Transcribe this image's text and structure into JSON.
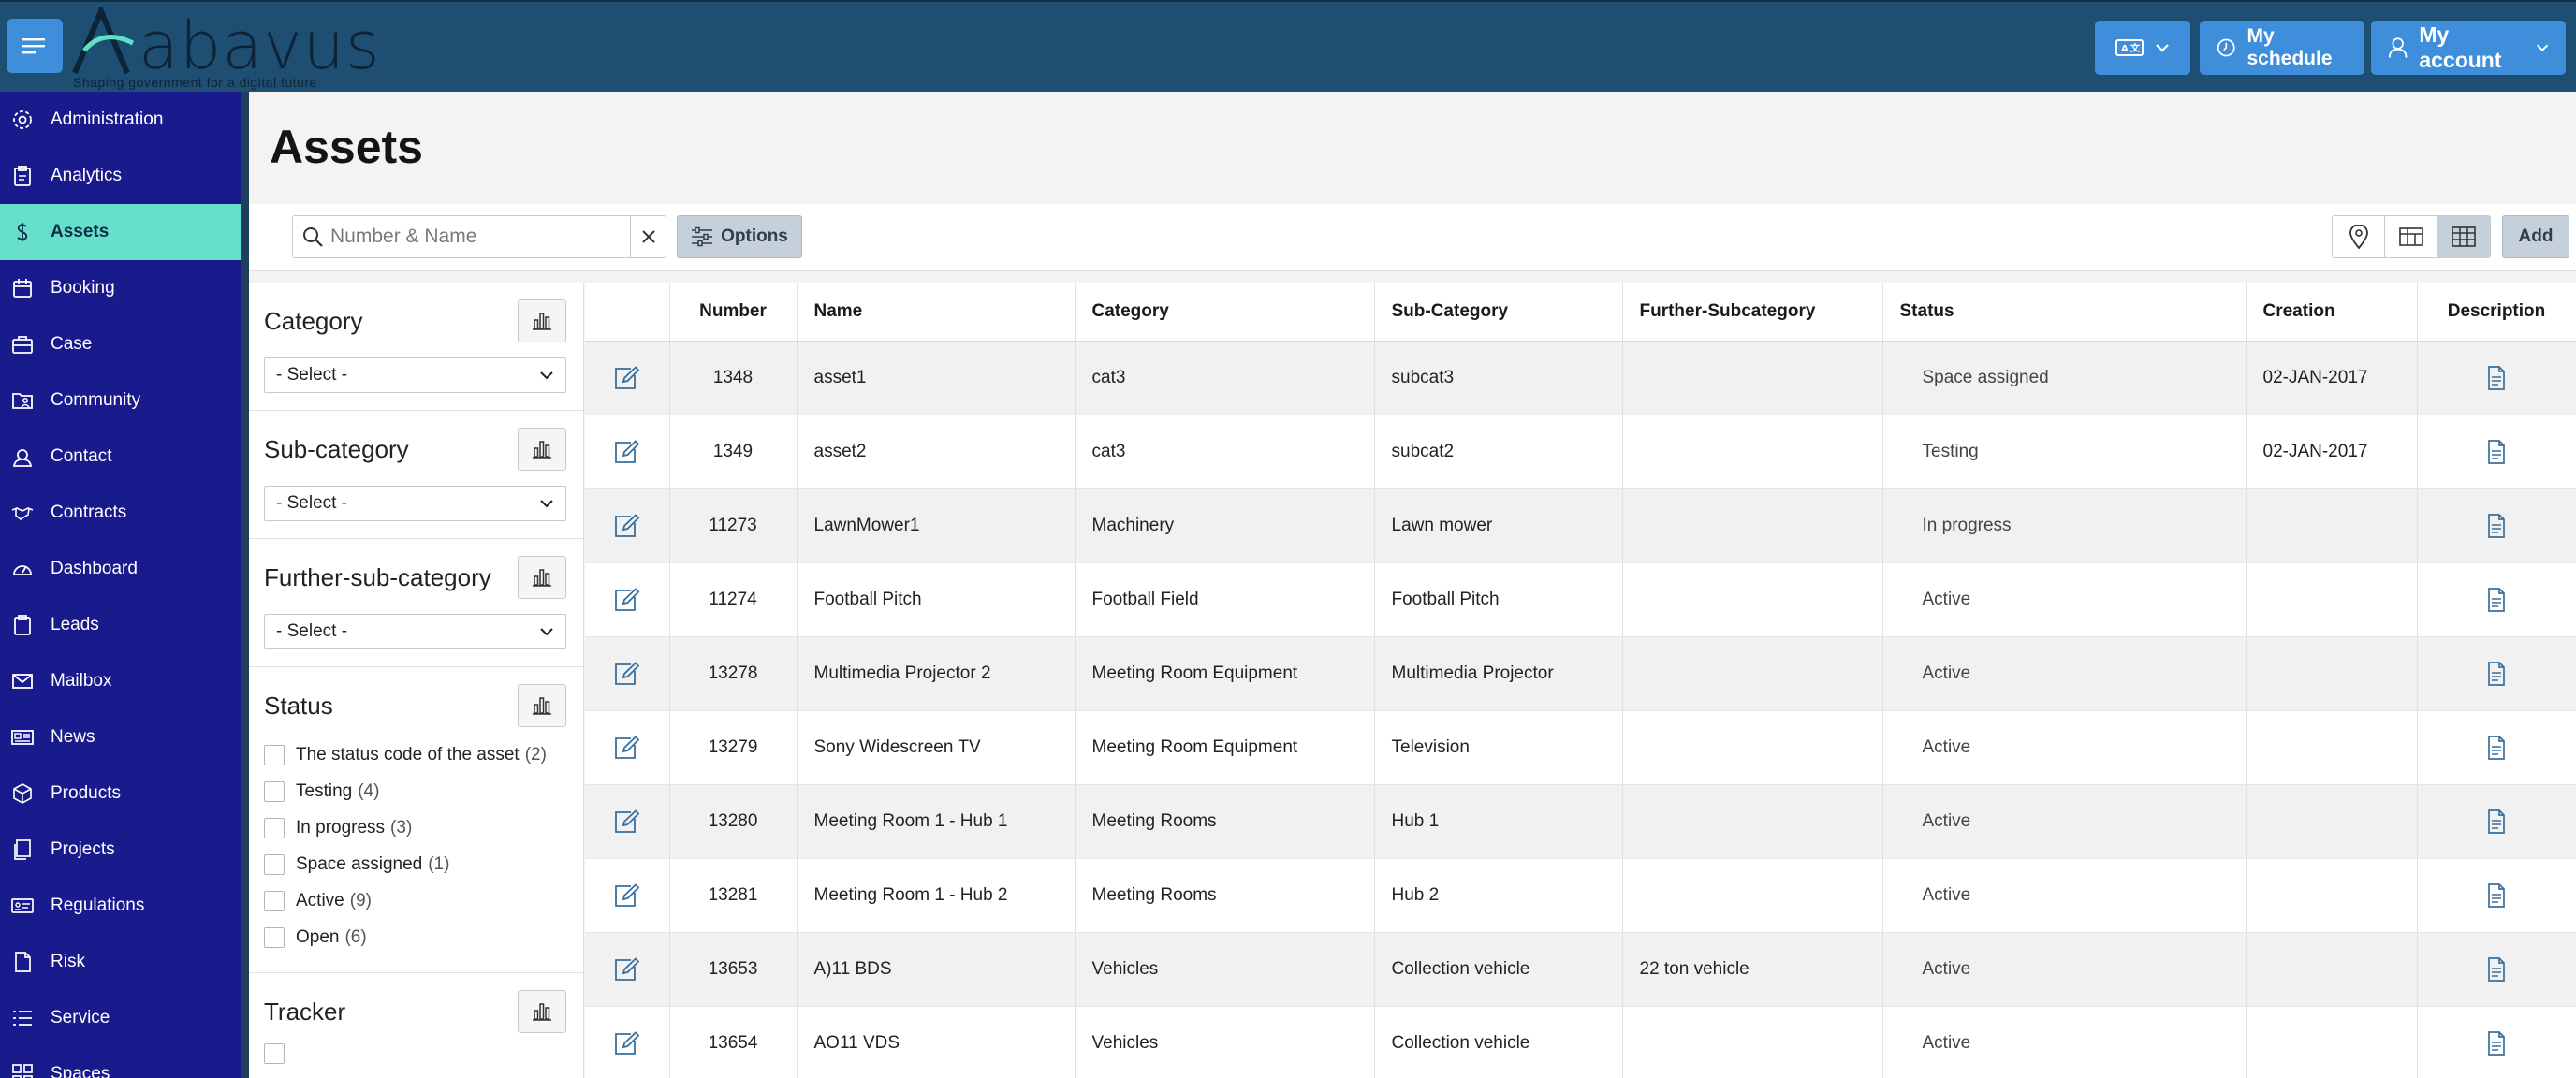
{
  "header": {
    "logo_text": "abavus",
    "logo_tagline": "Shaping government for a digital future",
    "schedule_label": "My schedule",
    "account_label": "My account",
    "language_icon": "language-icon"
  },
  "sidebar": {
    "items": [
      {
        "label": "Administration",
        "icon": "gear-icon"
      },
      {
        "label": "Analytics",
        "icon": "clipboard-icon"
      },
      {
        "label": "Assets",
        "icon": "dollar-icon",
        "active": true
      },
      {
        "label": "Booking",
        "icon": "calendar-icon"
      },
      {
        "label": "Case",
        "icon": "briefcase-icon"
      },
      {
        "label": "Community",
        "icon": "folder-user-icon"
      },
      {
        "label": "Contact",
        "icon": "contact-icon"
      },
      {
        "label": "Contracts",
        "icon": "handshake-icon"
      },
      {
        "label": "Dashboard",
        "icon": "gauge-icon"
      },
      {
        "label": "Leads",
        "icon": "clipboard-icon"
      },
      {
        "label": "Mailbox",
        "icon": "envelope-icon"
      },
      {
        "label": "News",
        "icon": "newspaper-icon"
      },
      {
        "label": "Products",
        "icon": "box-icon"
      },
      {
        "label": "Projects",
        "icon": "documents-icon"
      },
      {
        "label": "Regulations",
        "icon": "id-card-icon"
      },
      {
        "label": "Risk",
        "icon": "document-icon"
      },
      {
        "label": "Service",
        "icon": "list-icon"
      },
      {
        "label": "Spaces",
        "icon": "grid-icon"
      }
    ]
  },
  "page": {
    "title": "Assets"
  },
  "toolbar": {
    "search_placeholder": "Number & Name",
    "search_value": "",
    "options_label": "Options",
    "add_label": "Add"
  },
  "filters": {
    "category": {
      "title": "Category",
      "select": "- Select -"
    },
    "subcategory": {
      "title": "Sub-category",
      "select": "- Select -"
    },
    "further": {
      "title": "Further-sub-category",
      "select": "- Select -"
    },
    "status": {
      "title": "Status",
      "options": [
        {
          "label": "The status code of the asset",
          "count": "(2)"
        },
        {
          "label": "Testing",
          "count": "(4)"
        },
        {
          "label": "In progress",
          "count": "(3)"
        },
        {
          "label": "Space assigned",
          "count": "(1)"
        },
        {
          "label": "Active",
          "count": "(9)"
        },
        {
          "label": "Open",
          "count": "(6)"
        }
      ]
    },
    "tracker": {
      "title": "Tracker"
    }
  },
  "table": {
    "columns": [
      "",
      "Number",
      "Name",
      "Category",
      "Sub-Category",
      "Further-Subcategory",
      "Status",
      "Creation",
      "Description"
    ],
    "rows": [
      {
        "number": "1348",
        "name": "asset1",
        "category": "cat3",
        "subcategory": "subcat3",
        "further": "",
        "status": "Space assigned",
        "creation": "02-JAN-2017"
      },
      {
        "number": "1349",
        "name": "asset2",
        "category": "cat3",
        "subcategory": "subcat2",
        "further": "",
        "status": "Testing",
        "creation": "02-JAN-2017"
      },
      {
        "number": "11273",
        "name": "LawnMower1",
        "category": "Machinery",
        "subcategory": "Lawn mower",
        "further": "",
        "status": "In progress",
        "creation": ""
      },
      {
        "number": "11274",
        "name": "Football Pitch",
        "category": "Football Field",
        "subcategory": "Football Pitch",
        "further": "",
        "status": "Active",
        "creation": ""
      },
      {
        "number": "13278",
        "name": "Multimedia Projector 2",
        "category": "Meeting Room Equipment",
        "subcategory": "Multimedia Projector",
        "further": "",
        "status": "Active",
        "creation": ""
      },
      {
        "number": "13279",
        "name": "Sony Widescreen TV",
        "category": "Meeting Room Equipment",
        "subcategory": "Television",
        "further": "",
        "status": "Active",
        "creation": ""
      },
      {
        "number": "13280",
        "name": "Meeting Room 1 - Hub 1",
        "category": "Meeting Rooms",
        "subcategory": "Hub 1",
        "further": "",
        "status": "Active",
        "creation": ""
      },
      {
        "number": "13281",
        "name": "Meeting Room 1 - Hub 2",
        "category": "Meeting Rooms",
        "subcategory": "Hub 2",
        "further": "",
        "status": "Active",
        "creation": ""
      },
      {
        "number": "13653",
        "name": "A)11 BDS",
        "category": "Vehicles",
        "subcategory": "Collection vehicle",
        "further": "22 ton vehicle",
        "status": "Active",
        "creation": ""
      },
      {
        "number": "13654",
        "name": "AO11 VDS",
        "category": "Vehicles",
        "subcategory": "Collection vehicle",
        "further": "",
        "status": "Active",
        "creation": ""
      }
    ]
  },
  "colors": {
    "topbar": "#1f4e73",
    "sidebar": "#191a8c",
    "active_nav": "#66e0c8",
    "button_blue": "#3e8edb",
    "icon_blue": "#3a6f9c"
  }
}
